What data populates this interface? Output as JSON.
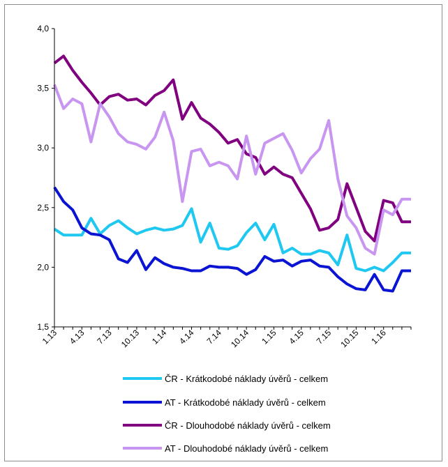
{
  "chart_data": {
    "type": "line",
    "title": "",
    "xlabel": "",
    "ylabel": "",
    "ylim": [
      1.5,
      4.0
    ],
    "yticks": [
      1.5,
      2.0,
      2.5,
      3.0,
      3.5,
      4.0
    ],
    "ytick_labels": [
      "1,5",
      "2,0",
      "2,5",
      "3,0",
      "3,5",
      "4,0"
    ],
    "x": [
      "1.13",
      "2.13",
      "3.13",
      "4.13",
      "5.13",
      "6.13",
      "7.13",
      "8.13",
      "9.13",
      "10.13",
      "11.13",
      "12.13",
      "1.14",
      "2.14",
      "3.14",
      "4.14",
      "5.14",
      "6.14",
      "7.14",
      "8.14",
      "9.14",
      "10.14",
      "11.14",
      "12.14",
      "1.15",
      "2.15",
      "3.15",
      "4.15",
      "5.15",
      "6.15",
      "7.15",
      "8.15",
      "9.15",
      "10.15",
      "11.15",
      "12.15",
      "1.16",
      "2.16",
      "3.16",
      "4.16"
    ],
    "xtick_labels": [
      "1.13",
      "4.13",
      "7.13",
      "10.13",
      "1.14",
      "4.14",
      "7.14",
      "10.14",
      "1.15",
      "4.15",
      "7.15",
      "10.15",
      "1.16"
    ],
    "grid": false,
    "legend_position": "bottom",
    "series": [
      {
        "name": "ČR - Krátkodobé náklady úvěrů - celkem",
        "color": "#1ec8f0",
        "values": [
          2.32,
          2.27,
          2.27,
          2.27,
          2.41,
          2.28,
          2.35,
          2.39,
          2.33,
          2.28,
          2.31,
          2.33,
          2.31,
          2.32,
          2.35,
          2.49,
          2.21,
          2.37,
          2.16,
          2.15,
          2.18,
          2.29,
          2.37,
          2.23,
          2.36,
          2.12,
          2.16,
          2.11,
          2.11,
          2.14,
          2.12,
          2.02,
          2.27,
          1.99,
          1.97,
          2.0,
          1.97,
          2.04,
          2.12,
          2.12
        ]
      },
      {
        "name": "AT - Krátkodobé náklady úvěrů - celkem",
        "color": "#0a14d2",
        "values": [
          2.67,
          2.55,
          2.48,
          2.33,
          2.28,
          2.27,
          2.23,
          2.07,
          2.04,
          2.14,
          1.98,
          2.08,
          2.03,
          2.0,
          1.99,
          1.97,
          1.97,
          2.01,
          2.0,
          2.0,
          1.99,
          1.94,
          1.98,
          2.09,
          2.05,
          2.06,
          2.01,
          2.05,
          2.06,
          2.01,
          2.0,
          1.92,
          1.86,
          1.82,
          1.81,
          1.94,
          1.81,
          1.8,
          1.97,
          1.97
        ]
      },
      {
        "name": "ČR - Dlouhodobé náklady úvěrů - celkem",
        "color": "#800080",
        "values": [
          3.71,
          3.77,
          3.65,
          3.55,
          3.46,
          3.36,
          3.43,
          3.45,
          3.4,
          3.41,
          3.36,
          3.44,
          3.48,
          3.57,
          3.24,
          3.38,
          3.25,
          3.2,
          3.13,
          3.04,
          3.07,
          2.95,
          2.92,
          2.78,
          2.84,
          2.78,
          2.75,
          2.62,
          2.49,
          2.31,
          2.33,
          2.4,
          2.7,
          2.5,
          2.3,
          2.22,
          2.56,
          2.54,
          2.38,
          2.38
        ]
      },
      {
        "name": "AT - Dlouhodobé náklady úvěrů - celkem",
        "color": "#c896f0",
        "values": [
          3.53,
          3.33,
          3.41,
          3.37,
          3.05,
          3.37,
          3.26,
          3.12,
          3.05,
          3.03,
          2.99,
          3.09,
          3.3,
          3.06,
          2.55,
          2.97,
          2.99,
          2.85,
          2.88,
          2.85,
          2.74,
          3.1,
          2.78,
          3.04,
          3.08,
          3.12,
          2.98,
          2.79,
          2.91,
          2.99,
          3.23,
          2.74,
          2.43,
          2.33,
          2.16,
          2.11,
          2.48,
          2.44,
          2.57,
          2.57
        ]
      }
    ]
  }
}
